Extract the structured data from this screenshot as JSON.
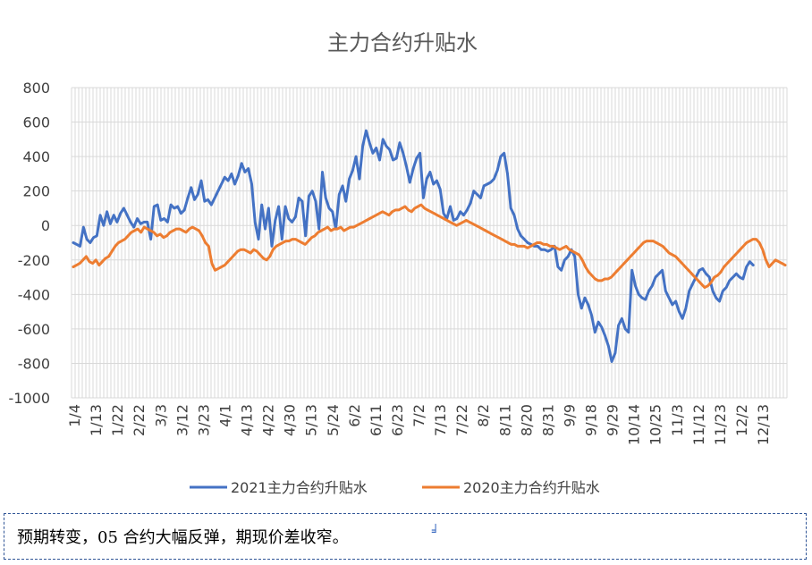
{
  "chart_data": {
    "type": "line",
    "title": "主力合约升贴水",
    "xlabel": "",
    "ylabel": "",
    "ylim": [
      -1000,
      800
    ],
    "y_ticks": [
      800,
      600,
      400,
      200,
      0,
      -200,
      -400,
      -600,
      -800,
      -1000
    ],
    "x_tick_labels": [
      "1/4",
      "1/13",
      "1/22",
      "2/22",
      "3/3",
      "3/12",
      "3/23",
      "4/1",
      "4/13",
      "4/22",
      "4/30",
      "5/13",
      "5/24",
      "6/2",
      "6/11",
      "6/23",
      "7/2",
      "7/13",
      "7/22",
      "8/2",
      "8/11",
      "8/20",
      "8/31",
      "9/9",
      "9/18",
      "9/29",
      "10/14",
      "10/25",
      "11/3",
      "11/12",
      "11/23",
      "12/2",
      "12/13"
    ],
    "grid": true,
    "legend_position": "bottom",
    "series": [
      {
        "name": "2021主力合约升贴水",
        "color": "#4472c4",
        "values": [
          -100,
          -110,
          -120,
          -10,
          -80,
          -100,
          -70,
          -60,
          60,
          0,
          80,
          10,
          60,
          20,
          70,
          100,
          60,
          20,
          -10,
          40,
          10,
          20,
          20,
          -80,
          110,
          120,
          30,
          40,
          20,
          120,
          100,
          110,
          70,
          90,
          160,
          220,
          150,
          180,
          260,
          140,
          150,
          120,
          160,
          200,
          240,
          280,
          260,
          300,
          240,
          290,
          360,
          310,
          330,
          240,
          20,
          -80,
          120,
          -20,
          100,
          -120,
          30,
          110,
          -80,
          110,
          40,
          20,
          50,
          160,
          140,
          -60,
          170,
          200,
          140,
          -20,
          310,
          160,
          100,
          80,
          -20,
          180,
          230,
          140,
          270,
          320,
          400,
          270,
          460,
          550,
          480,
          420,
          450,
          380,
          500,
          460,
          440,
          380,
          390,
          480,
          420,
          340,
          250,
          330,
          390,
          420,
          160,
          270,
          310,
          240,
          260,
          210,
          70,
          40,
          110,
          30,
          40,
          80,
          60,
          90,
          130,
          200,
          180,
          160,
          230,
          240,
          250,
          270,
          320,
          400,
          420,
          300,
          100,
          60,
          -20,
          -60,
          -80,
          -100,
          -110,
          -120,
          -120,
          -140,
          -140,
          -150,
          -140,
          -120,
          -240,
          -260,
          -200,
          -180,
          -140,
          -180,
          -400,
          -480,
          -420,
          -460,
          -520,
          -620,
          -560,
          -590,
          -640,
          -700,
          -790,
          -740,
          -580,
          -540,
          -600,
          -620,
          -260,
          -350,
          -400,
          -420,
          -430,
          -380,
          -350,
          -300,
          -280,
          -260,
          -380,
          -420,
          -460,
          -440,
          -500,
          -540,
          -480,
          -380,
          -340,
          -300,
          -260,
          -250,
          -280,
          -300,
          -380,
          -420,
          -440,
          -380,
          -360,
          -320,
          -300,
          -280,
          -300,
          -310,
          -240,
          -210,
          -230
        ]
      },
      {
        "name": "2020主力合约升贴水",
        "color": "#ed7d31",
        "values": [
          -240,
          -230,
          -220,
          -200,
          -180,
          -210,
          -220,
          -200,
          -230,
          -210,
          -190,
          -180,
          -150,
          -120,
          -100,
          -90,
          -80,
          -60,
          -40,
          -30,
          -20,
          -40,
          -10,
          -20,
          -30,
          -40,
          -60,
          -50,
          -70,
          -60,
          -40,
          -30,
          -20,
          -20,
          -30,
          -40,
          -20,
          -10,
          -20,
          -30,
          -60,
          -100,
          -120,
          -220,
          -260,
          -250,
          -240,
          -230,
          -210,
          -190,
          -170,
          -150,
          -140,
          -140,
          -150,
          -160,
          -140,
          -150,
          -170,
          -190,
          -200,
          -180,
          -140,
          -120,
          -110,
          -100,
          -90,
          -90,
          -80,
          -80,
          -90,
          -100,
          -110,
          -90,
          -70,
          -60,
          -40,
          -30,
          -20,
          -10,
          -30,
          -20,
          -20,
          -10,
          -30,
          -20,
          -10,
          -10,
          0,
          10,
          20,
          30,
          40,
          50,
          60,
          70,
          80,
          70,
          60,
          80,
          90,
          90,
          100,
          110,
          90,
          80,
          100,
          110,
          120,
          100,
          90,
          80,
          70,
          60,
          50,
          40,
          30,
          20,
          10,
          0,
          10,
          20,
          30,
          20,
          10,
          0,
          -10,
          -20,
          -30,
          -40,
          -50,
          -60,
          -70,
          -80,
          -90,
          -100,
          -110,
          -110,
          -120,
          -120,
          -120,
          -130,
          -120,
          -110,
          -100,
          -100,
          -110,
          -110,
          -120,
          -120,
          -130,
          -140,
          -130,
          -120,
          -140,
          -150,
          -160,
          -170,
          -200,
          -240,
          -270,
          -290,
          -310,
          -320,
          -320,
          -310,
          -310,
          -300,
          -280,
          -260,
          -240,
          -220,
          -200,
          -180,
          -160,
          -140,
          -120,
          -100,
          -90,
          -90,
          -90,
          -100,
          -110,
          -120,
          -140,
          -160,
          -170,
          -180,
          -200,
          -220,
          -240,
          -260,
          -280,
          -300,
          -320,
          -340,
          -360,
          -350,
          -330,
          -300,
          -290,
          -270,
          -240,
          -220,
          -200,
          -180,
          -160,
          -140,
          -120,
          -100,
          -90,
          -80,
          -80,
          -100,
          -140,
          -200,
          -240,
          -220,
          -200,
          -210,
          -220,
          -230
        ]
      }
    ]
  },
  "caption": {
    "text": "预期转变，05 合约大幅反弹，期现价差收窄。",
    "mark": "╛"
  }
}
